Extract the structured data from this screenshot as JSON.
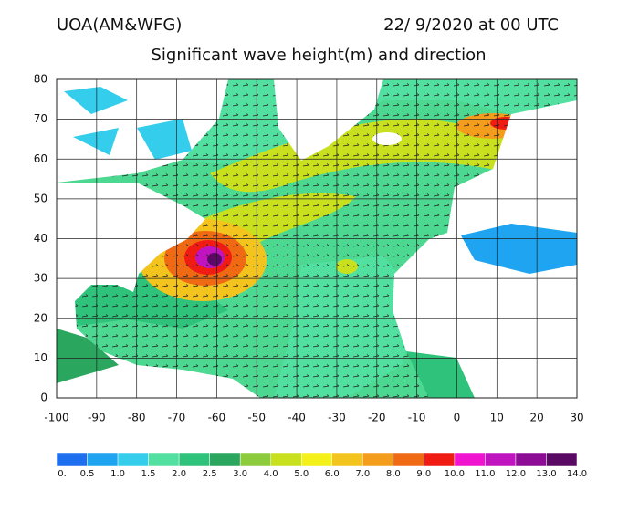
{
  "header": {
    "left": "UOA(AM&WFG)",
    "right": "22/ 9/2020 at 00 UTC",
    "title": "Significant wave height(m) and direction"
  },
  "map": {
    "lon_ticks": [
      -100,
      -90,
      -80,
      -70,
      -60,
      -50,
      -40,
      -30,
      -20,
      -10,
      0,
      10,
      20,
      30
    ],
    "lat_ticks": [
      0,
      10,
      20,
      30,
      40,
      50,
      60,
      70,
      80
    ],
    "lonlim": [
      -100,
      30
    ],
    "latlim": [
      0,
      80
    ],
    "grid": true
  },
  "colorbar": {
    "labels": [
      "0.",
      "0.5",
      "1.0",
      "1.5",
      "2.0",
      "2.5",
      "3.0",
      "4.0",
      "5.0",
      "6.0",
      "7.0",
      "8.0",
      "9.0",
      "10.0",
      "11.0",
      "12.0",
      "13.0",
      "14.0"
    ],
    "colors": [
      "#1e6ff0",
      "#1ea4f0",
      "#34cdec",
      "#52e0a0",
      "#2ec27a",
      "#2aa65e",
      "#8ccc3c",
      "#c8e01e",
      "#f4f01a",
      "#f4c41e",
      "#f49c1c",
      "#f06a14",
      "#f01c14",
      "#f014d0",
      "#c014c0",
      "#8c0c96",
      "#5a0a64"
    ]
  }
}
